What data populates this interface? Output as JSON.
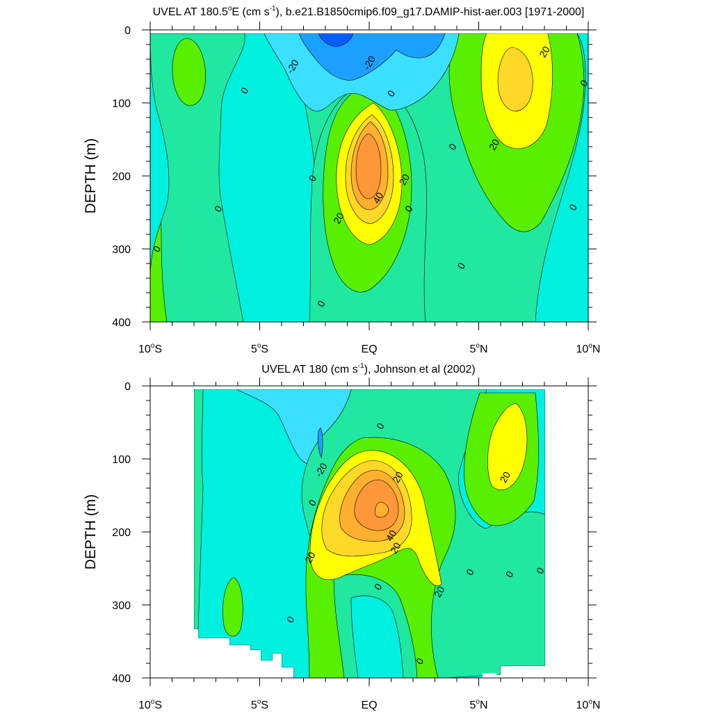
{
  "figure": {
    "background": "#ffffff"
  },
  "palette": {
    "le_neg40": "#0060ff",
    "neg40_neg20": "#1ca0ff",
    "neg20_neg10": "#3ce0ff",
    "neg10_0": "#00f0e0",
    "zero_10": "#20e8a0",
    "ten_20": "#58f000",
    "twenty_30": "#ffff00",
    "thirty_40": "#ffd828",
    "forty_50": "#ffb030",
    "fifty_60": "#ff9838",
    "line": "#000000"
  },
  "chart_data": [
    {
      "type": "contour",
      "title": "UVEL AT 180.5°E (cm s-1), b.e21.B1850cmip6.f09_g17.DAMIP-hist-aer.003 [1971-2000]",
      "title_parts": {
        "lead": "UVEL AT 180.5",
        "deg": "o",
        "mid": "E (cm s",
        "sup": "-1",
        "tail": "), b.e21.B1850cmip6.f09_g17.DAMIP-hist-aer.003 [1971-2000]"
      },
      "ylabel": "DEPTH (m)",
      "xlim": [
        -10,
        10
      ],
      "ylim": [
        400,
        0
      ],
      "xticks": [
        {
          "value": -10,
          "num": "10",
          "hem": "S"
        },
        {
          "value": -5,
          "num": "5",
          "hem": "S"
        },
        {
          "value": 0,
          "num": "EQ",
          "hem": ""
        },
        {
          "value": 5,
          "num": "5",
          "hem": "N"
        },
        {
          "value": 10,
          "num": "10",
          "hem": "N"
        }
      ],
      "yticks": [
        0,
        100,
        200,
        300,
        400
      ],
      "contour_levels": [
        -20,
        0,
        20,
        40
      ],
      "features": [
        {
          "kind": "core",
          "sign": "positive",
          "lat": 0,
          "depth": 180,
          "value_range": "50-60"
        },
        {
          "kind": "core",
          "sign": "positive",
          "lat": 6.5,
          "depth": 70,
          "value_range": "30-40"
        },
        {
          "kind": "core",
          "sign": "negative",
          "lat": -1.5,
          "depth": 0,
          "value_range": "<-40"
        }
      ],
      "contour_labels": [
        {
          "text": "-20",
          "lat": -3.5,
          "depth": 50
        },
        {
          "text": "-20",
          "lat": 0,
          "depth": 45
        },
        {
          "text": "20",
          "lat": 8,
          "depth": 30
        },
        {
          "text": "20",
          "lat": 5.7,
          "depth": 157
        },
        {
          "text": "20",
          "lat": 1.6,
          "depth": 205
        },
        {
          "text": "40",
          "lat": 0.4,
          "depth": 230
        },
        {
          "text": "20",
          "lat": -1.4,
          "depth": 258
        },
        {
          "text": "0",
          "lat": -5.7,
          "depth": 83
        },
        {
          "text": "0",
          "lat": 1,
          "depth": 87
        },
        {
          "text": "0",
          "lat": 3.8,
          "depth": 160
        },
        {
          "text": "0",
          "lat": 9.8,
          "depth": 73
        },
        {
          "text": "0",
          "lat": -2.6,
          "depth": 203
        },
        {
          "text": "0",
          "lat": 1.8,
          "depth": 245
        },
        {
          "text": "0",
          "lat": -6.9,
          "depth": 245
        },
        {
          "text": "0",
          "lat": 9.3,
          "depth": 243
        },
        {
          "text": "0",
          "lat": -9.7,
          "depth": 300
        },
        {
          "text": "0",
          "lat": 4.2,
          "depth": 323
        },
        {
          "text": "0",
          "lat": -2.2,
          "depth": 375
        }
      ]
    },
    {
      "type": "contour",
      "title": "UVEL AT 180 (cm s-1), Johnson et al (2002)",
      "title_parts": {
        "lead": "UVEL AT 180 (cm s",
        "sup": "-1",
        "tail": "), Johnson et al (2002)"
      },
      "ylabel": "DEPTH (m)",
      "xlim": [
        -10,
        10
      ],
      "ylim": [
        400,
        0
      ],
      "data_lat_range": [
        -8,
        8
      ],
      "xticks": [
        {
          "value": -10,
          "num": "10",
          "hem": "S"
        },
        {
          "value": -5,
          "num": "5",
          "hem": "S"
        },
        {
          "value": 0,
          "num": "EQ",
          "hem": ""
        },
        {
          "value": 5,
          "num": "5",
          "hem": "N"
        },
        {
          "value": 10,
          "num": "10",
          "hem": "N"
        }
      ],
      "yticks": [
        0,
        100,
        200,
        300,
        400
      ],
      "contour_levels": [
        -20,
        0,
        20,
        40
      ],
      "features": [
        {
          "kind": "core",
          "sign": "positive",
          "lat": 0.5,
          "depth": 170,
          "value_range": "50-60"
        },
        {
          "kind": "core",
          "sign": "positive",
          "lat": 6.5,
          "depth": 100,
          "value_range": "20-30"
        }
      ],
      "contour_labels": [
        {
          "text": "-20",
          "lat": -2.2,
          "depth": 115
        },
        {
          "text": "20",
          "lat": 1.3,
          "depth": 125
        },
        {
          "text": "20",
          "lat": 6.2,
          "depth": 125
        },
        {
          "text": "40",
          "lat": 1.0,
          "depth": 205
        },
        {
          "text": "20",
          "lat": 1.2,
          "depth": 222
        },
        {
          "text": "20",
          "lat": -2.7,
          "depth": 235
        },
        {
          "text": "20",
          "lat": 3.2,
          "depth": 282
        },
        {
          "text": "0",
          "lat": 0.5,
          "depth": 55
        },
        {
          "text": "0",
          "lat": -2.6,
          "depth": 160
        },
        {
          "text": "0",
          "lat": 0.4,
          "depth": 275
        },
        {
          "text": "0",
          "lat": 4.6,
          "depth": 255
        },
        {
          "text": "0",
          "lat": 6.4,
          "depth": 258
        },
        {
          "text": "0",
          "lat": 7.8,
          "depth": 253
        },
        {
          "text": "0",
          "lat": -3.6,
          "depth": 320
        },
        {
          "text": "0",
          "lat": 2.3,
          "depth": 377
        }
      ]
    }
  ]
}
